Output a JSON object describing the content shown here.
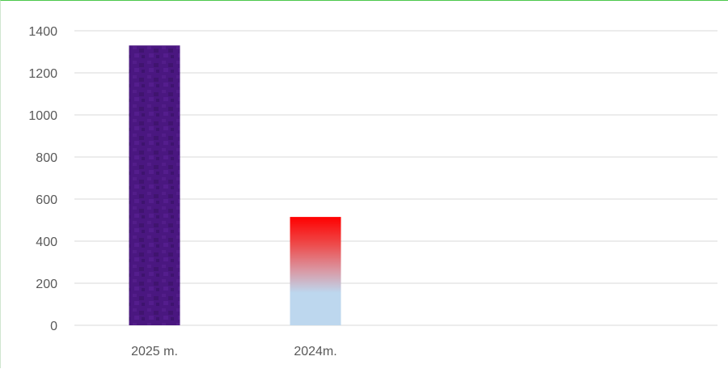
{
  "chart_data": {
    "type": "bar",
    "categories": [
      "2025 m.",
      "2024m."
    ],
    "values": [
      1330,
      515
    ],
    "ylim": [
      0,
      1400
    ],
    "yticks": [
      0,
      200,
      400,
      600,
      800,
      1000,
      1200,
      1400
    ],
    "grid": true,
    "legend": "none",
    "colors": {
      "bar_1": "#4a1780",
      "bar_2_top": "#ff0000",
      "bar_2_bottom": "#bdd7ee",
      "gridline": "#d9d9d9",
      "frame_top": "#4cc84c"
    }
  }
}
